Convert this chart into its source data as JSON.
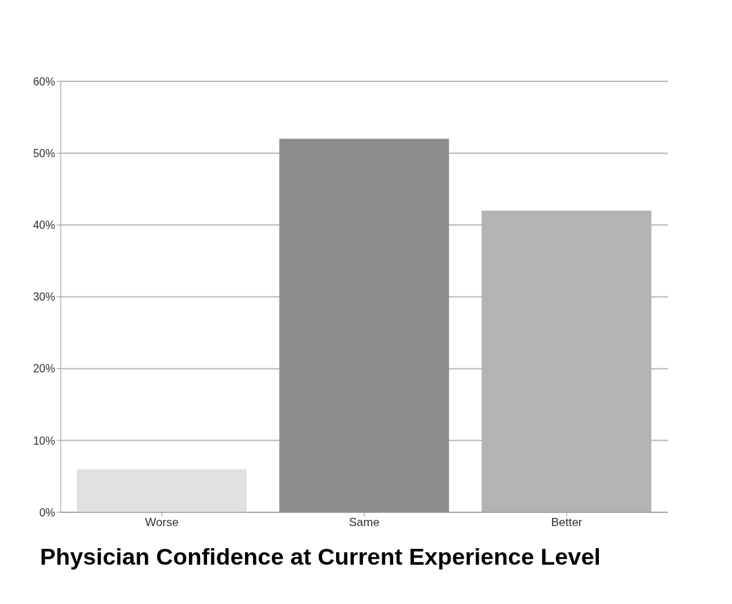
{
  "chart_data": {
    "type": "bar",
    "title": "Physician Confidence at Current Experience Level",
    "categories": [
      "Worse",
      "Same",
      "Better"
    ],
    "values": [
      6,
      52,
      42
    ],
    "colors": [
      "#e0e0e0",
      "#8c8c8c",
      "#b3b3b3"
    ],
    "ylim": [
      0,
      60
    ],
    "yticks": [
      {
        "value": 0,
        "label": "0%"
      },
      {
        "value": 10,
        "label": "10%"
      },
      {
        "value": 20,
        "label": "20%"
      },
      {
        "value": 30,
        "label": "30%"
      },
      {
        "value": 40,
        "label": "40%"
      },
      {
        "value": 50,
        "label": "50%"
      },
      {
        "value": 60,
        "label": "60%"
      }
    ],
    "grid": "y"
  }
}
